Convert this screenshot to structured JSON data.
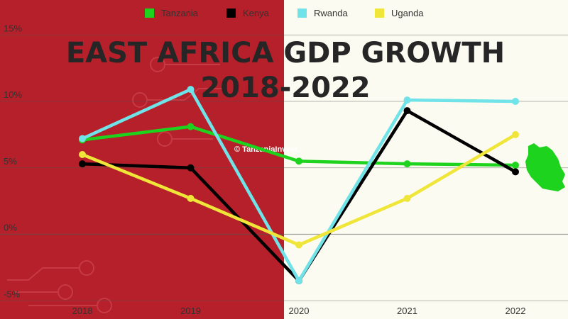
{
  "colors": {
    "left_panel": "#b5202a",
    "right_panel": "#fbfbf1",
    "grid": "#555555"
  },
  "watermark": "© TanzaniaInvest",
  "map_icon": "tanzania-map-icon",
  "chart_data": {
    "type": "line",
    "title_line1": "EAST AFRICA GDP GROWTH",
    "title_line2": "2018-2022",
    "x": [
      "2018",
      "2019",
      "2020",
      "2021",
      "2022"
    ],
    "y_ticks": [
      "15%",
      "10%",
      "5%",
      "0%",
      "-5%"
    ],
    "y_tick_values": [
      15,
      10,
      5,
      0,
      -5
    ],
    "ylim": [
      -5,
      15
    ],
    "legend_position": "top-center",
    "series": [
      {
        "name": "Tanzania",
        "color": "#1ed31e",
        "values": [
          7.1,
          8.1,
          5.5,
          5.3,
          5.2
        ]
      },
      {
        "name": "Kenya",
        "color": "#000000",
        "values": [
          5.3,
          5.0,
          -3.5,
          9.3,
          4.7
        ]
      },
      {
        "name": "Rwanda",
        "color": "#6fe3e8",
        "values": [
          7.2,
          10.9,
          -3.5,
          10.1,
          10.0
        ]
      },
      {
        "name": "Uganda",
        "color": "#f0e63a",
        "values": [
          6.0,
          2.7,
          -0.8,
          2.7,
          7.5
        ]
      }
    ]
  }
}
